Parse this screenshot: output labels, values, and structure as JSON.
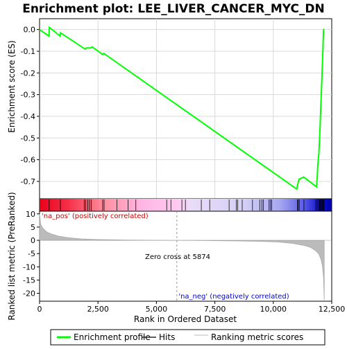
{
  "chart_data": {
    "type": "line",
    "title": "Enrichment plot: LEE_LIVER_CANCER_MYC_DN",
    "panels": {
      "enrichment": {
        "ylabel": "Enrichment score (ES)",
        "ylim": [
          -0.78,
          0.05
        ],
        "yticks": [
          0.0,
          -0.1,
          -0.2,
          -0.3,
          -0.4,
          -0.5,
          -0.6,
          -0.7
        ],
        "ytick_labels": [
          "0.0",
          "-0.1",
          "-0.2",
          "-0.3",
          "-0.4",
          "-0.5",
          "-0.6",
          "-0.7"
        ],
        "series": [
          {
            "name": "Enrichment profile",
            "color": "#00ff00",
            "x": [
              0,
              400,
              420,
              880,
              900,
              1950,
              2000,
              2200,
              2250,
              2700,
              2750,
              11000,
              11100,
              11300,
              11850,
              11880,
              11900,
              11950,
              12000,
              12030,
              12060,
              12090,
              12120,
              12150,
              12170
            ],
            "y": [
              0.0,
              -0.03,
              0.01,
              -0.03,
              -0.015,
              -0.09,
              -0.085,
              -0.085,
              -0.08,
              -0.115,
              -0.11,
              -0.735,
              -0.69,
              -0.68,
              -0.725,
              -0.68,
              -0.63,
              -0.57,
              -0.45,
              -0.36,
              -0.28,
              -0.19,
              -0.1,
              0.0,
              0.003
            ]
          }
        ]
      },
      "hits": {
        "name": "Hits",
        "x": [
          410,
          890,
          1910,
          1970,
          2060,
          2140,
          2210,
          2700,
          2760,
          3310,
          3790,
          4120,
          5440,
          5620,
          6090,
          6240,
          6920,
          7280,
          8110,
          8420,
          8480,
          8670,
          9110,
          9420,
          9510,
          9580,
          9820,
          9880,
          9930,
          11030,
          11070,
          11110,
          11310,
          11820,
          11880,
          11940,
          11980,
          12010,
          12050,
          12080,
          12110,
          12140,
          12170
        ]
      },
      "ranked": {
        "ylabel": "Ranked list metric (PreRanked)",
        "xlabel": "Rank in Ordered Dataset",
        "ylim": [
          -23,
          11
        ],
        "yticks": [
          10,
          5,
          0,
          -5,
          -10,
          -15,
          -20
        ],
        "ytick_labels": [
          "10",
          "5",
          "0",
          "-5",
          "-10",
          "-15",
          "-20"
        ],
        "xlim": [
          0,
          12500
        ],
        "xticks": [
          0,
          2500,
          5000,
          7500,
          10000,
          12500
        ],
        "xtick_labels": [
          "0",
          "2,500",
          "5,000",
          "7,500",
          "10,000",
          "12,500"
        ],
        "metric_x": [
          0,
          50,
          150,
          300,
          500,
          800,
          1200,
          1800,
          2500,
          3500,
          4500,
          5874,
          7000,
          8500,
          9500,
          10200,
          10800,
          11300,
          11600,
          11800,
          11950,
          12050,
          12100,
          12150,
          12180
        ],
        "metric_y": [
          10,
          6.0,
          4.5,
          3.2,
          2.4,
          1.6,
          1.0,
          0.55,
          0.3,
          0.15,
          0.05,
          0.0,
          -0.1,
          -0.25,
          -0.4,
          -0.65,
          -1.1,
          -1.9,
          -2.7,
          -3.8,
          -5.2,
          -7.5,
          -9.5,
          -14,
          -22.5
        ],
        "zero_cross": 5874,
        "zero_cross_label": "Zero cross at 5874",
        "pos_label": "'na_pos' (positively correlated)",
        "neg_label": "'na_neg' (negatively correlated)"
      }
    },
    "legend": {
      "placement": "bottom",
      "entries": [
        {
          "label": "Enrichment profile",
          "color": "#00ff00"
        },
        {
          "label": "Hits",
          "color": "#000000"
        },
        {
          "label": "Ranking metric scores",
          "color": "#bbbbbb"
        }
      ]
    }
  }
}
